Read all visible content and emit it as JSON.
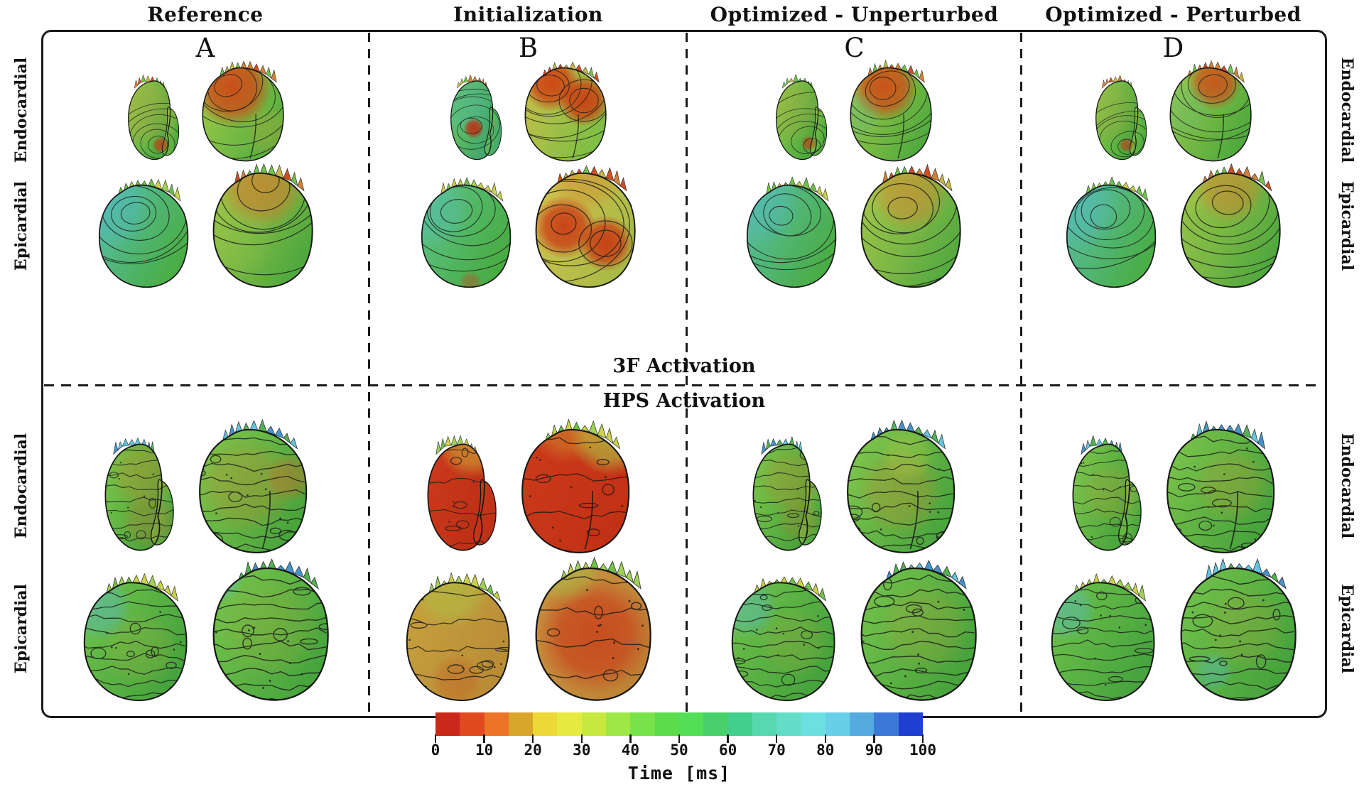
{
  "headers": [
    "Reference",
    "Initialization",
    "Optimized - Unperturbed",
    "Optimized - Perturbed"
  ],
  "column_letters": [
    "A",
    "B",
    "C",
    "D"
  ],
  "section_labels": {
    "first": "3F Activation",
    "second": "HPS Activation"
  },
  "row_labels": {
    "r1": "Endocardial",
    "r2": "Epicardial",
    "r3": "Endocardial",
    "r4": "Epicardial"
  },
  "colorbar": {
    "title": "Time [ms]",
    "ticks": [
      "0",
      "10",
      "20",
      "30",
      "40",
      "50",
      "60",
      "70",
      "80",
      "90",
      "100"
    ],
    "colors": [
      "#c9281a",
      "#e1491f",
      "#ec7426",
      "#d9a62c",
      "#ecd837",
      "#e6ea40",
      "#c7e83f",
      "#9fe746",
      "#77e24a",
      "#5bdc4b",
      "#52de55",
      "#47d06b",
      "#45cf8f",
      "#58d8ae",
      "#63ddc8",
      "#6ce0e0",
      "#67cfe8",
      "#55aadf",
      "#3c78d8",
      "#1f3fd0"
    ]
  },
  "hearts": {
    "palettes": {
      "mix": [
        "#d07a2a",
        "#6abf3f",
        "#c8b43a",
        "#cf4516"
      ],
      "cyan": [
        "#3e8fc9",
        "#5ac3de",
        "#49ae49"
      ],
      "green": [
        "#6abf3f",
        "#9ad04c",
        "#c8cf42"
      ]
    },
    "cells": [
      {
        "l": {
          "sh": "lean",
          "b": [
            "#95cc4e",
            "#4aa83e"
          ],
          "sp": [
            [
              0.3,
              0.42,
              0.45,
              "#c2a342",
              0.35
            ],
            [
              0.5,
              0.8,
              0.1,
              "#b04a1c",
              0.9
            ]
          ],
          "cr": "mix",
          "m": "s",
          "n": 6
        },
        "r": {
          "sh": "wide",
          "b": [
            "#a6cc48",
            "#55ae40"
          ],
          "sp": [
            [
              0.4,
              0.3,
              0.38,
              "#cf4516",
              0.92
            ],
            [
              0.8,
              0.7,
              0.26,
              "#b7a83c",
              0.35
            ]
          ],
          "cr": "mix",
          "m": "s",
          "n": 7,
          "cleft": true
        }
      },
      {
        "l": {
          "sh": "lean",
          "b": [
            "#6cc857",
            "#42a66e"
          ],
          "sp": [
            [
              0.2,
              0.35,
              0.38,
              "#4fb8a8",
              0.45
            ],
            [
              0.38,
              0.62,
              0.12,
              "#bf2d12",
              0.92
            ]
          ],
          "cr": "mix",
          "m": "s",
          "n": 6
        },
        "r": {
          "sh": "wide",
          "b": [
            "#cebf4a",
            "#7dbf44"
          ],
          "sp": [
            [
              0.36,
              0.26,
              0.28,
              "#cf3f12",
              0.92
            ],
            [
              0.7,
              0.42,
              0.25,
              "#cc3a10",
              0.92
            ]
          ],
          "cr": "mix",
          "m": "s",
          "n": 8,
          "rings": true,
          "cleft": true
        }
      },
      {
        "l": {
          "sh": "lean",
          "b": [
            "#92cc4c",
            "#48a73d"
          ],
          "sp": [
            [
              0.27,
              0.4,
              0.42,
              "#bba343",
              0.3
            ],
            [
              0.5,
              0.78,
              0.09,
              "#b34d1e",
              0.85
            ]
          ],
          "cr": "mix",
          "m": "s",
          "n": 6
        },
        "r": {
          "sh": "wide",
          "b": [
            "#a4ca46",
            "#52aa3f"
          ],
          "sp": [
            [
              0.44,
              0.3,
              0.32,
              "#d04a16",
              0.92
            ],
            [
              0.14,
              0.55,
              0.26,
              "#58b896",
              0.3
            ]
          ],
          "cr": "mix",
          "m": "s",
          "n": 7,
          "cleft": true
        }
      },
      {
        "l": {
          "sh": "lean",
          "b": [
            "#90cc4c",
            "#47a63c"
          ],
          "sp": [
            [
              0.26,
              0.42,
              0.4,
              "#b9a342",
              0.28
            ],
            [
              0.48,
              0.8,
              0.09,
              "#b04a1e",
              0.8
            ]
          ],
          "cr": "mix",
          "m": "s",
          "n": 6
        },
        "r": {
          "sh": "wide",
          "b": [
            "#9fca4a",
            "#4fa93e"
          ],
          "sp": [
            [
              0.55,
              0.26,
              0.26,
              "#d04c18",
              0.88
            ],
            [
              0.2,
              0.5,
              0.3,
              "#60b88a",
              0.28
            ]
          ],
          "cr": "mix",
          "m": "s",
          "n": 7,
          "cleft": true
        }
      },
      {
        "l": {
          "sh": "wide",
          "b": [
            "#57bfae",
            "#4aad44"
          ],
          "sp": [
            [
              0.2,
              0.32,
              0.36,
              "#52b8c8",
              0.4
            ]
          ],
          "cr": "green",
          "m": "s",
          "n": 6
        },
        "r": {
          "sh": "wide",
          "b": [
            "#a8c84a",
            "#4fa83e"
          ],
          "sp": [
            [
              0.5,
              0.22,
              0.34,
              "#cf7c2c",
              0.7
            ],
            [
              0.3,
              0.62,
              0.3,
              "#8ec44a",
              0.25
            ]
          ],
          "cr": "mix",
          "m": "s",
          "n": 7
        }
      },
      {
        "l": {
          "sh": "wide",
          "b": [
            "#5ec48e",
            "#48ab41"
          ],
          "sp": [
            [
              0.2,
              0.35,
              0.32,
              "#54bdbb",
              0.4
            ],
            [
              0.55,
              0.92,
              0.1,
              "#b8522a",
              0.5
            ]
          ],
          "cr": "green",
          "m": "s",
          "n": 6
        },
        "r": {
          "sh": "wide",
          "b": [
            "#d6c24e",
            "#a8ba46"
          ],
          "sp": [
            [
              0.33,
              0.52,
              0.25,
              "#cb3914",
              0.92
            ],
            [
              0.68,
              0.64,
              0.22,
              "#c93712",
              0.92
            ],
            [
              0.52,
              0.14,
              0.3,
              "#cf8c30",
              0.5
            ]
          ],
          "cr": "mix",
          "m": "s",
          "n": 8,
          "rings": true
        }
      },
      {
        "l": {
          "sh": "wide",
          "b": [
            "#58c0a8",
            "#4aac44"
          ],
          "sp": [
            [
              0.22,
              0.3,
              0.34,
              "#54b8c6",
              0.38
            ]
          ],
          "cr": "green",
          "m": "s",
          "n": 6
        },
        "r": {
          "sh": "wide",
          "b": [
            "#b2c94c",
            "#55aa40"
          ],
          "sp": [
            [
              0.5,
              0.28,
              0.3,
              "#cf8a30",
              0.62
            ],
            [
              0.2,
              0.6,
              0.28,
              "#72bc46",
              0.25
            ]
          ],
          "cr": "mix",
          "m": "s",
          "n": 7
        }
      },
      {
        "l": {
          "sh": "wide",
          "b": [
            "#59c0ac",
            "#4aad45"
          ],
          "sp": [
            [
              0.2,
              0.33,
              0.35,
              "#55b9c8",
              0.4
            ]
          ],
          "cr": "green",
          "m": "s",
          "n": 6
        },
        "r": {
          "sh": "wide",
          "b": [
            "#aac84a",
            "#50a83e"
          ],
          "sp": [
            [
              0.5,
              0.24,
              0.28,
              "#cc842e",
              0.6
            ],
            [
              0.22,
              0.58,
              0.28,
              "#6fba45",
              0.25
            ]
          ],
          "cr": "mix",
          "m": "s",
          "n": 7
        }
      },
      {
        "l": {
          "sh": "lean",
          "b": [
            "#7cc84a",
            "#49a23c"
          ],
          "sp": [
            [
              0.45,
              0.35,
              0.3,
              "#b9912f",
              0.45
            ],
            [
              0.5,
              0.72,
              0.25,
              "#c07a30",
              0.35
            ]
          ],
          "cr": "cyan",
          "m": "r",
          "n": 10
        },
        "r": {
          "sh": "wide",
          "b": [
            "#80c84c",
            "#4aa43c"
          ],
          "sp": [
            [
              0.45,
              0.5,
              0.36,
              "#bb8c32",
              0.4
            ],
            [
              0.8,
              0.45,
              0.18,
              "#cc6a28",
              0.45
            ]
          ],
          "cr": "cyan",
          "m": "r",
          "n": 11,
          "cleft": true
        }
      },
      {
        "l": {
          "sh": "lean",
          "b": [
            "#cc3a1b",
            "#bd3016"
          ],
          "sp": [
            [
              0.5,
              0.1,
              0.3,
              "#cfae3a",
              0.65
            ]
          ],
          "cr": "green",
          "m": "r",
          "n": 4
        },
        "r": {
          "sh": "wide",
          "b": [
            "#cc3a1b",
            "#c23114"
          ],
          "sp": [
            [
              0.78,
              0.16,
              0.3,
              "#b0c442",
              0.75
            ],
            [
              0.45,
              0.08,
              0.3,
              "#cf9c34",
              0.5
            ]
          ],
          "cr": "green",
          "m": "r",
          "n": 4,
          "cleft": true
        }
      },
      {
        "l": {
          "sh": "lean",
          "b": [
            "#7ec84b",
            "#48a33c"
          ],
          "sp": [
            [
              0.45,
              0.4,
              0.3,
              "#b8922f",
              0.4
            ],
            [
              0.52,
              0.72,
              0.2,
              "#bd7c2e",
              0.3
            ]
          ],
          "cr": "cyan",
          "m": "r",
          "n": 10
        },
        "r": {
          "sh": "wide",
          "b": [
            "#84c84e",
            "#4ba53d"
          ],
          "sp": [
            [
              0.5,
              0.55,
              0.32,
              "#b98e32",
              0.4
            ],
            [
              0.56,
              0.3,
              0.2,
              "#c4cc44",
              0.3
            ]
          ],
          "cr": "cyan",
          "m": "r",
          "n": 11,
          "cleft": true
        }
      },
      {
        "l": {
          "sh": "lean",
          "b": [
            "#80c84c",
            "#49a43d"
          ],
          "sp": [
            [
              0.45,
              0.5,
              0.28,
              "#b0a038",
              0.32
            ]
          ],
          "cr": "cyan",
          "m": "r",
          "n": 10
        },
        "r": {
          "sh": "wide",
          "b": [
            "#7ec64b",
            "#48a33c"
          ],
          "sp": [
            [
              0.6,
              0.5,
              0.28,
              "#b29a36",
              0.35
            ]
          ],
          "cr": "cyan",
          "m": "r",
          "n": 11,
          "cleft": true
        }
      },
      {
        "l": {
          "sh": "wide",
          "b": [
            "#72c44a",
            "#46a33d"
          ],
          "sp": [
            [
              0.2,
              0.3,
              0.26,
              "#55b8d4",
              0.45
            ],
            [
              0.55,
              0.6,
              0.3,
              "#a6b040",
              0.25
            ]
          ],
          "cr": "green",
          "m": "r",
          "n": 11
        },
        "r": {
          "sh": "wide",
          "b": [
            "#78c64b",
            "#47a43d"
          ],
          "sp": [
            [
              0.5,
              0.5,
              0.36,
              "#a8a83c",
              0.25
            ],
            [
              0.14,
              0.2,
              0.16,
              "#58bcd8",
              0.4
            ]
          ],
          "cr": "cyan",
          "m": "r",
          "n": 12
        }
      },
      {
        "l": {
          "sh": "wide",
          "b": [
            "#c8a23e",
            "#b98c36"
          ],
          "sp": [
            [
              0.45,
              0.18,
              0.3,
              "#a8c846",
              0.5
            ],
            [
              0.5,
              0.82,
              0.2,
              "#c25a22",
              0.4
            ]
          ],
          "cr": "green",
          "m": "r",
          "n": 5
        },
        "r": {
          "sh": "wide",
          "b": [
            "#c99240",
            "#bd8436"
          ],
          "sp": [
            [
              0.52,
              0.55,
              0.4,
              "#c8421a",
              0.85
            ],
            [
              0.3,
              0.12,
              0.26,
              "#a2c344",
              0.5
            ]
          ],
          "cr": "green",
          "m": "r",
          "n": 5
        }
      },
      {
        "l": {
          "sh": "wide",
          "b": [
            "#70c24a",
            "#45a23c"
          ],
          "sp": [
            [
              0.2,
              0.3,
              0.24,
              "#58bcd4",
              0.42
            ],
            [
              0.6,
              0.55,
              0.28,
              "#aaa83e",
              0.25
            ]
          ],
          "cr": "green",
          "m": "r",
          "n": 11
        },
        "r": {
          "sh": "wide",
          "b": [
            "#76c44b",
            "#47a33c"
          ],
          "sp": [
            [
              0.55,
              0.5,
              0.32,
              "#b0a03a",
              0.3
            ]
          ],
          "cr": "cyan",
          "m": "r",
          "n": 12
        }
      },
      {
        "l": {
          "sh": "wide",
          "b": [
            "#71c34a",
            "#46a33d"
          ],
          "sp": [
            [
              0.2,
              0.32,
              0.24,
              "#56bad4",
              0.42
            ]
          ],
          "cr": "green",
          "m": "r",
          "n": 11
        },
        "r": {
          "sh": "wide",
          "b": [
            "#74c44b",
            "#46a33c"
          ],
          "sp": [
            [
              0.55,
              0.5,
              0.3,
              "#aca23a",
              0.28
            ],
            [
              0.32,
              0.78,
              0.14,
              "#55b8d2",
              0.35
            ]
          ],
          "cr": "cyan",
          "m": "r",
          "n": 12
        }
      }
    ]
  }
}
